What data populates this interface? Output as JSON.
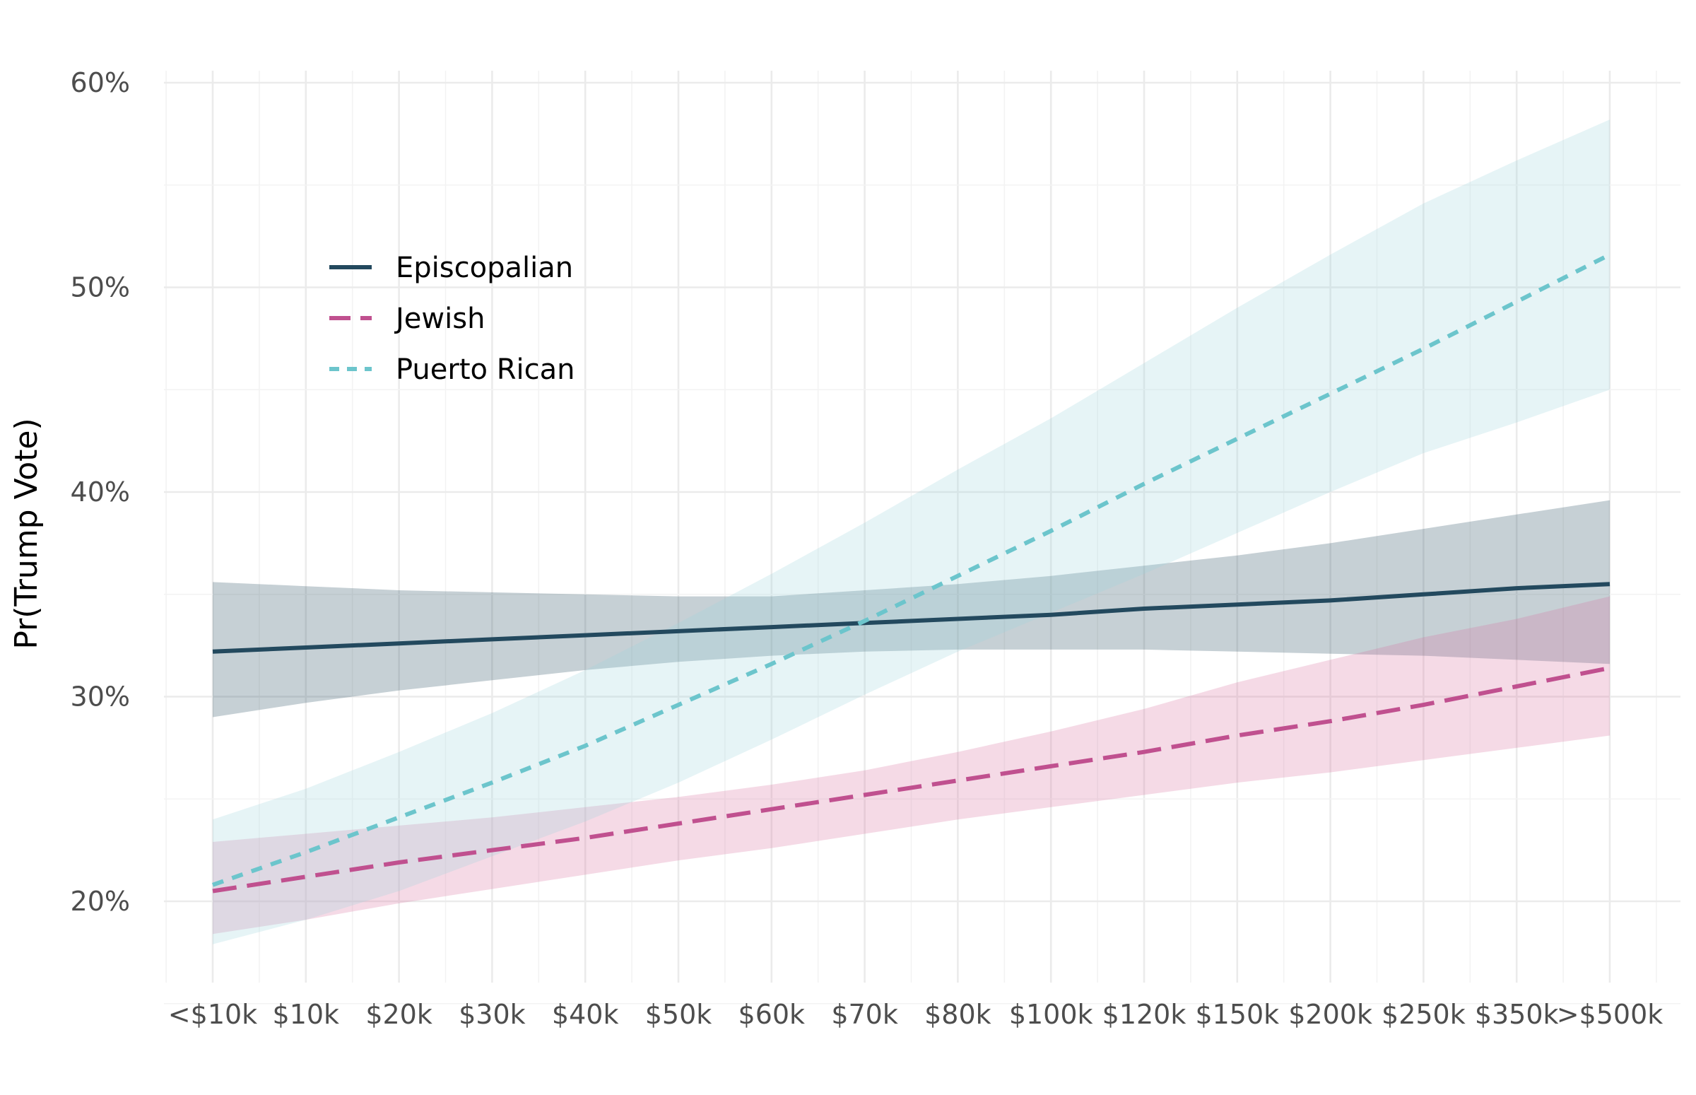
{
  "chart_data": {
    "type": "line",
    "title": "",
    "xlabel": "",
    "ylabel": "Pr(Trump Vote)",
    "ylim": [
      0.16,
      0.6
    ],
    "y_ticks": [
      0.2,
      0.3,
      0.4,
      0.5,
      0.6
    ],
    "y_tick_labels": [
      "20%",
      "30%",
      "40%",
      "50%",
      "60%"
    ],
    "categories": [
      "<$10k",
      "$10k",
      "$20k",
      "$30k",
      "$40k",
      "$50k",
      "$60k",
      "$70k",
      "$80k",
      "$100k",
      "$120k",
      "$150k",
      "$200k",
      "$250k",
      "$350k",
      ">$500k"
    ],
    "grid": true,
    "legend": {
      "position": "top-left"
    },
    "series": [
      {
        "name": "Episcopalian",
        "color": "#23495e",
        "line_style": "solid",
        "fill_color": "#23495e",
        "values": [
          0.322,
          0.324,
          0.326,
          0.328,
          0.33,
          0.332,
          0.334,
          0.336,
          0.338,
          0.34,
          0.343,
          0.345,
          0.347,
          0.35,
          0.353,
          0.355
        ],
        "lower": [
          0.29,
          0.297,
          0.303,
          0.308,
          0.313,
          0.317,
          0.32,
          0.322,
          0.323,
          0.323,
          0.323,
          0.322,
          0.321,
          0.32,
          0.318,
          0.316
        ],
        "upper": [
          0.356,
          0.354,
          0.352,
          0.351,
          0.35,
          0.349,
          0.349,
          0.352,
          0.355,
          0.359,
          0.364,
          0.369,
          0.375,
          0.382,
          0.389,
          0.396
        ]
      },
      {
        "name": "Jewish",
        "color": "#c0508f",
        "line_style": "longdash",
        "fill_color": "#d8709f",
        "values": [
          0.205,
          0.212,
          0.219,
          0.225,
          0.231,
          0.238,
          0.245,
          0.252,
          0.259,
          0.266,
          0.273,
          0.281,
          0.288,
          0.296,
          0.305,
          0.314
        ],
        "lower": [
          0.184,
          0.191,
          0.199,
          0.206,
          0.213,
          0.22,
          0.226,
          0.233,
          0.24,
          0.246,
          0.252,
          0.258,
          0.263,
          0.269,
          0.275,
          0.281
        ],
        "upper": [
          0.229,
          0.233,
          0.237,
          0.241,
          0.246,
          0.251,
          0.257,
          0.264,
          0.273,
          0.283,
          0.294,
          0.307,
          0.318,
          0.329,
          0.338,
          0.349
        ]
      },
      {
        "name": "Puerto Rican",
        "color": "#6cc5cc",
        "line_style": "dashed",
        "fill_color": "#9dd5de",
        "values": [
          0.208,
          0.224,
          0.241,
          0.258,
          0.276,
          0.296,
          0.316,
          0.337,
          0.359,
          0.381,
          0.404,
          0.426,
          0.448,
          0.47,
          0.493,
          0.516
        ],
        "lower": [
          0.179,
          0.191,
          0.205,
          0.222,
          0.239,
          0.258,
          0.279,
          0.301,
          0.322,
          0.341,
          0.36,
          0.38,
          0.4,
          0.419,
          0.434,
          0.45
        ],
        "upper": [
          0.24,
          0.255,
          0.273,
          0.292,
          0.313,
          0.336,
          0.36,
          0.385,
          0.411,
          0.436,
          0.463,
          0.49,
          0.516,
          0.541,
          0.562,
          0.582
        ]
      }
    ]
  }
}
